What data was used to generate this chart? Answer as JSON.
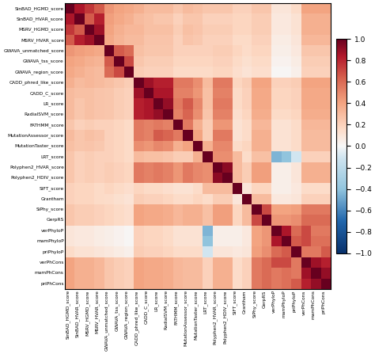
{
  "labels": [
    "SinBAD_HGMD_score",
    "SinBAD_HVAR_score",
    "MSRV_HGMD_score",
    "MSRV_HVAR_score",
    "GWAVA_unmatched_score",
    "GWAVA_tss_score",
    "GWAVA_region_score",
    "CADD_phred_like_score",
    "CADD_C_score",
    "LR_score",
    "RadialSVM_score",
    "FATHMM_score",
    "MutationAssessor_score",
    "MutationTaster_score",
    "LRT_score",
    "Polyphen2_HVAR_score",
    "Polyphen2_HDIV_score",
    "SIFT_score",
    "Grantham",
    "SiPhy_score",
    "GerpRS",
    "verPhyloP",
    "mamPhyloP",
    "priPhyloP",
    "verPhCons",
    "mamPhCons",
    "priPhCons"
  ],
  "corr": [
    [
      1.0,
      0.85,
      0.75,
      0.65,
      0.45,
      0.4,
      0.38,
      0.35,
      0.3,
      0.3,
      0.3,
      0.25,
      0.3,
      0.28,
      0.25,
      0.25,
      0.25,
      0.2,
      0.2,
      0.25,
      0.25,
      0.1,
      0.1,
      0.15,
      0.4,
      0.4,
      0.4
    ],
    [
      0.85,
      1.0,
      0.65,
      0.82,
      0.42,
      0.38,
      0.35,
      0.3,
      0.28,
      0.25,
      0.25,
      0.2,
      0.25,
      0.25,
      0.2,
      0.2,
      0.2,
      0.18,
      0.18,
      0.22,
      0.22,
      0.08,
      0.08,
      0.12,
      0.35,
      0.35,
      0.35
    ],
    [
      0.75,
      0.65,
      1.0,
      0.88,
      0.4,
      0.35,
      0.32,
      0.32,
      0.28,
      0.28,
      0.28,
      0.22,
      0.28,
      0.26,
      0.22,
      0.22,
      0.22,
      0.18,
      0.18,
      0.22,
      0.22,
      0.08,
      0.08,
      0.12,
      0.35,
      0.35,
      0.35
    ],
    [
      0.65,
      0.82,
      0.88,
      1.0,
      0.38,
      0.33,
      0.3,
      0.3,
      0.26,
      0.26,
      0.26,
      0.2,
      0.26,
      0.24,
      0.2,
      0.2,
      0.2,
      0.16,
      0.16,
      0.2,
      0.2,
      0.06,
      0.06,
      0.1,
      0.32,
      0.32,
      0.32
    ],
    [
      0.45,
      0.42,
      0.4,
      0.38,
      1.0,
      0.65,
      0.6,
      0.28,
      0.25,
      0.25,
      0.25,
      0.2,
      0.2,
      0.2,
      0.2,
      0.22,
      0.22,
      0.18,
      0.15,
      0.18,
      0.18,
      0.05,
      0.05,
      0.08,
      0.25,
      0.25,
      0.25
    ],
    [
      0.4,
      0.38,
      0.35,
      0.33,
      0.65,
      1.0,
      0.7,
      0.25,
      0.22,
      0.22,
      0.22,
      0.18,
      0.18,
      0.18,
      0.18,
      0.2,
      0.2,
      0.16,
      0.13,
      0.16,
      0.16,
      0.03,
      0.03,
      0.06,
      0.22,
      0.22,
      0.22
    ],
    [
      0.38,
      0.35,
      0.32,
      0.3,
      0.6,
      0.7,
      1.0,
      0.22,
      0.2,
      0.2,
      0.2,
      0.16,
      0.16,
      0.16,
      0.16,
      0.18,
      0.18,
      0.14,
      0.11,
      0.14,
      0.14,
      0.01,
      0.01,
      0.04,
      0.2,
      0.2,
      0.2
    ],
    [
      0.35,
      0.3,
      0.32,
      0.3,
      0.28,
      0.25,
      0.22,
      1.0,
      0.88,
      0.82,
      0.82,
      0.55,
      0.55,
      0.48,
      0.3,
      0.55,
      0.55,
      0.18,
      0.22,
      0.4,
      0.4,
      0.2,
      0.2,
      0.22,
      0.4,
      0.4,
      0.4
    ],
    [
      0.3,
      0.28,
      0.28,
      0.26,
      0.25,
      0.22,
      0.2,
      0.88,
      1.0,
      0.85,
      0.85,
      0.52,
      0.52,
      0.45,
      0.28,
      0.52,
      0.52,
      0.16,
      0.2,
      0.38,
      0.38,
      0.18,
      0.18,
      0.2,
      0.38,
      0.38,
      0.38
    ],
    [
      0.3,
      0.25,
      0.28,
      0.26,
      0.25,
      0.22,
      0.2,
      0.82,
      0.85,
      1.0,
      0.9,
      0.55,
      0.65,
      0.5,
      0.28,
      0.55,
      0.55,
      0.16,
      0.2,
      0.38,
      0.38,
      0.18,
      0.18,
      0.2,
      0.38,
      0.38,
      0.38
    ],
    [
      0.3,
      0.25,
      0.28,
      0.26,
      0.25,
      0.22,
      0.2,
      0.82,
      0.85,
      0.9,
      1.0,
      0.52,
      0.62,
      0.48,
      0.26,
      0.52,
      0.52,
      0.14,
      0.18,
      0.36,
      0.36,
      0.16,
      0.16,
      0.18,
      0.36,
      0.36,
      0.36
    ],
    [
      0.25,
      0.2,
      0.22,
      0.2,
      0.2,
      0.18,
      0.16,
      0.55,
      0.52,
      0.55,
      0.52,
      1.0,
      0.55,
      0.35,
      0.22,
      0.45,
      0.45,
      0.12,
      0.15,
      0.32,
      0.32,
      0.12,
      0.12,
      0.15,
      0.32,
      0.32,
      0.32
    ],
    [
      0.3,
      0.25,
      0.28,
      0.26,
      0.2,
      0.18,
      0.16,
      0.55,
      0.52,
      0.65,
      0.62,
      0.55,
      1.0,
      0.4,
      0.22,
      0.55,
      0.55,
      0.12,
      0.15,
      0.35,
      0.35,
      0.12,
      0.12,
      0.15,
      0.3,
      0.3,
      0.3
    ],
    [
      0.28,
      0.25,
      0.26,
      0.24,
      0.2,
      0.18,
      0.16,
      0.48,
      0.45,
      0.5,
      0.48,
      0.35,
      0.4,
      1.0,
      0.35,
      0.5,
      0.5,
      0.15,
      0.18,
      0.35,
      0.35,
      0.12,
      0.12,
      0.15,
      0.3,
      0.3,
      0.3
    ],
    [
      0.25,
      0.2,
      0.22,
      0.2,
      0.2,
      0.18,
      0.16,
      0.3,
      0.28,
      0.28,
      0.26,
      0.22,
      0.22,
      0.35,
      1.0,
      0.48,
      0.48,
      0.3,
      0.15,
      0.28,
      0.28,
      -0.45,
      -0.4,
      -0.1,
      0.2,
      0.2,
      0.2
    ],
    [
      0.25,
      0.2,
      0.22,
      0.2,
      0.22,
      0.2,
      0.18,
      0.55,
      0.52,
      0.55,
      0.52,
      0.45,
      0.55,
      0.5,
      0.48,
      1.0,
      0.92,
      0.3,
      0.22,
      0.42,
      0.42,
      0.05,
      0.05,
      0.1,
      0.35,
      0.35,
      0.35
    ],
    [
      0.25,
      0.2,
      0.22,
      0.2,
      0.22,
      0.2,
      0.18,
      0.55,
      0.52,
      0.55,
      0.52,
      0.45,
      0.55,
      0.5,
      0.48,
      0.92,
      1.0,
      0.3,
      0.22,
      0.42,
      0.42,
      0.05,
      0.05,
      0.1,
      0.35,
      0.35,
      0.35
    ],
    [
      0.2,
      0.18,
      0.18,
      0.16,
      0.18,
      0.16,
      0.14,
      0.18,
      0.16,
      0.16,
      0.14,
      0.12,
      0.12,
      0.15,
      0.3,
      0.3,
      0.3,
      1.0,
      0.1,
      0.18,
      0.18,
      0.05,
      0.05,
      0.08,
      0.15,
      0.15,
      0.15
    ],
    [
      0.2,
      0.18,
      0.18,
      0.16,
      0.15,
      0.13,
      0.11,
      0.22,
      0.2,
      0.2,
      0.18,
      0.15,
      0.15,
      0.18,
      0.15,
      0.22,
      0.22,
      0.1,
      1.0,
      0.3,
      0.3,
      0.08,
      0.08,
      0.1,
      0.2,
      0.2,
      0.2
    ],
    [
      0.25,
      0.22,
      0.22,
      0.2,
      0.18,
      0.16,
      0.14,
      0.4,
      0.38,
      0.38,
      0.36,
      0.32,
      0.35,
      0.35,
      0.28,
      0.42,
      0.42,
      0.18,
      0.3,
      1.0,
      0.7,
      0.4,
      0.4,
      0.42,
      0.55,
      0.55,
      0.55
    ],
    [
      0.25,
      0.22,
      0.22,
      0.2,
      0.18,
      0.16,
      0.14,
      0.4,
      0.38,
      0.38,
      0.36,
      0.32,
      0.35,
      0.35,
      0.28,
      0.42,
      0.42,
      0.18,
      0.3,
      0.7,
      1.0,
      0.45,
      0.45,
      0.48,
      0.6,
      0.6,
      0.6
    ],
    [
      0.1,
      0.08,
      0.08,
      0.06,
      0.05,
      0.03,
      0.01,
      0.2,
      0.18,
      0.18,
      0.16,
      0.12,
      0.12,
      0.12,
      -0.45,
      0.05,
      0.05,
      0.05,
      0.08,
      0.4,
      0.45,
      1.0,
      0.85,
      0.6,
      0.7,
      0.55,
      0.55
    ],
    [
      0.1,
      0.08,
      0.08,
      0.06,
      0.05,
      0.03,
      0.01,
      0.2,
      0.18,
      0.18,
      0.16,
      0.12,
      0.12,
      0.12,
      -0.4,
      0.05,
      0.05,
      0.05,
      0.08,
      0.4,
      0.45,
      0.85,
      1.0,
      0.65,
      0.7,
      0.58,
      0.58
    ],
    [
      0.15,
      0.12,
      0.12,
      0.1,
      0.08,
      0.06,
      0.04,
      0.22,
      0.2,
      0.2,
      0.18,
      0.15,
      0.15,
      0.15,
      -0.1,
      0.1,
      0.1,
      0.08,
      0.1,
      0.42,
      0.48,
      0.6,
      0.65,
      1.0,
      0.55,
      0.55,
      0.65
    ],
    [
      0.4,
      0.35,
      0.35,
      0.32,
      0.25,
      0.22,
      0.2,
      0.4,
      0.38,
      0.38,
      0.36,
      0.32,
      0.3,
      0.3,
      0.2,
      0.35,
      0.35,
      0.15,
      0.2,
      0.55,
      0.6,
      0.7,
      0.7,
      0.55,
      1.0,
      0.88,
      0.82
    ],
    [
      0.4,
      0.35,
      0.35,
      0.32,
      0.25,
      0.22,
      0.2,
      0.4,
      0.38,
      0.38,
      0.36,
      0.32,
      0.3,
      0.3,
      0.2,
      0.35,
      0.35,
      0.15,
      0.2,
      0.55,
      0.6,
      0.55,
      0.58,
      0.55,
      0.88,
      1.0,
      0.9
    ],
    [
      0.4,
      0.35,
      0.35,
      0.32,
      0.25,
      0.22,
      0.2,
      0.4,
      0.38,
      0.38,
      0.36,
      0.32,
      0.3,
      0.3,
      0.2,
      0.35,
      0.35,
      0.15,
      0.2,
      0.55,
      0.6,
      0.55,
      0.58,
      0.65,
      0.82,
      0.9,
      1.0
    ]
  ],
  "cbar_ticks": [
    1,
    0.8,
    0.6,
    0.4,
    0.2,
    0,
    -0.2,
    -0.4,
    -0.6,
    -0.8,
    -1
  ],
  "figsize": [
    4.74,
    4.47
  ],
  "dpi": 100,
  "label_fontsize": 4.2,
  "cbar_fontsize": 6.5
}
